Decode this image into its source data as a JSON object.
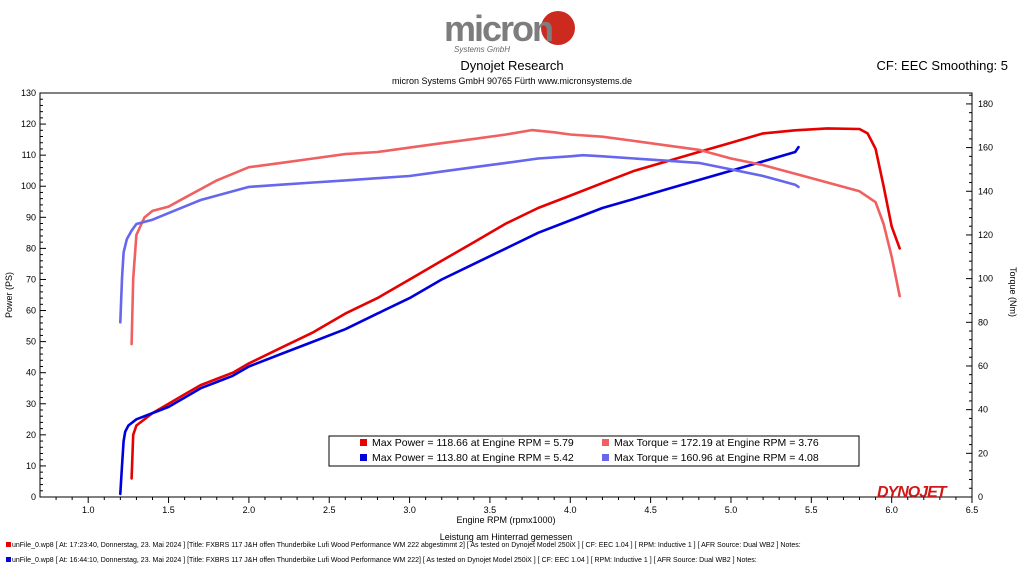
{
  "header": {
    "logo_text": "micron",
    "logo_subtext": "Systems GmbH",
    "title": "Dynojet Research",
    "subtitle": "micron Systems GmbH  90765 Fürth www.micronsystems.de",
    "cf_text": "CF: EEC Smoothing: 5"
  },
  "brand": {
    "dynojet_logo_text": "DYNOJET"
  },
  "colors": {
    "red": "#e60000",
    "blue": "#0000dd",
    "light_red": "#f06060",
    "light_blue": "#6666ee"
  },
  "chart_data": {
    "type": "line",
    "xlabel": "Engine RPM (rpmx1000)",
    "xlabel_sub": "Leistung am Hinterrad gemessen",
    "ylabel_left": "Power (PS)",
    "ylabel_right": "Torque (Nm)",
    "xlim": [
      0.7,
      6.5
    ],
    "ylim_left": [
      0,
      130
    ],
    "ylim_right": [
      0,
      185
    ],
    "x_ticks": [
      "1.0",
      "1.5",
      "2.0",
      "2.5",
      "3.0",
      "3.5",
      "4.0",
      "4.5",
      "5.0",
      "5.5",
      "6.0",
      "6.5"
    ],
    "y_ticks_left": [
      "0",
      "10",
      "20",
      "30",
      "40",
      "50",
      "60",
      "70",
      "80",
      "90",
      "100",
      "110",
      "120",
      "130"
    ],
    "y_ticks_right": [
      "0",
      "20",
      "40",
      "60",
      "80",
      "100",
      "120",
      "140",
      "160",
      "180"
    ],
    "grid": false,
    "series": [
      {
        "name": "Max Power",
        "axis": "left",
        "color": "#e60000",
        "x": [
          1.27,
          1.28,
          1.3,
          1.4,
          1.5,
          1.6,
          1.7,
          1.8,
          1.9,
          2.0,
          2.2,
          2.4,
          2.6,
          2.8,
          3.0,
          3.2,
          3.4,
          3.6,
          3.8,
          4.0,
          4.2,
          4.4,
          4.6,
          4.8,
          5.0,
          5.2,
          5.4,
          5.6,
          5.8,
          5.85,
          5.9,
          5.95,
          6.0,
          6.05
        ],
        "y": [
          6,
          20,
          23,
          27,
          30,
          33,
          36,
          38,
          40,
          43,
          48,
          53,
          59,
          64,
          70,
          76,
          82,
          88,
          93,
          97,
          101,
          105,
          108,
          111,
          114,
          117,
          118,
          118.6,
          118.4,
          117,
          112,
          100,
          87,
          80
        ]
      },
      {
        "name": "Max Power",
        "axis": "left",
        "color": "#0000dd",
        "x": [
          1.2,
          1.21,
          1.22,
          1.23,
          1.25,
          1.3,
          1.4,
          1.5,
          1.6,
          1.7,
          1.8,
          1.9,
          2.0,
          2.2,
          2.4,
          2.6,
          2.8,
          3.0,
          3.2,
          3.4,
          3.6,
          3.8,
          4.0,
          4.2,
          4.4,
          4.6,
          4.8,
          5.0,
          5.2,
          5.4,
          5.42
        ],
        "y": [
          1,
          10,
          18,
          21,
          23,
          25,
          27,
          29,
          32,
          35,
          37,
          39,
          42,
          46,
          50,
          54,
          59,
          64,
          70,
          75,
          80,
          85,
          89,
          93,
          96,
          99,
          102,
          105,
          108,
          111,
          112.6
        ]
      },
      {
        "name": "Max Torque",
        "axis": "right",
        "color": "#f06060",
        "x": [
          1.27,
          1.28,
          1.3,
          1.35,
          1.4,
          1.5,
          1.6,
          1.7,
          1.8,
          1.9,
          2.0,
          2.2,
          2.4,
          2.6,
          2.8,
          3.0,
          3.2,
          3.4,
          3.6,
          3.76,
          3.9,
          4.0,
          4.2,
          4.4,
          4.6,
          4.8,
          5.0,
          5.2,
          5.4,
          5.6,
          5.8,
          5.9,
          5.95,
          6.0,
          6.05
        ],
        "y": [
          70,
          100,
          120,
          128,
          131,
          133,
          137,
          141,
          145,
          148,
          151,
          153,
          155,
          157,
          158,
          160,
          162,
          164,
          166,
          168,
          167,
          166,
          165,
          163,
          161,
          159,
          155,
          152,
          148,
          144,
          140,
          135,
          125,
          110,
          92
        ]
      },
      {
        "name": "Max Torque",
        "axis": "right",
        "color": "#6666ee",
        "x": [
          1.2,
          1.21,
          1.22,
          1.24,
          1.27,
          1.3,
          1.4,
          1.5,
          1.6,
          1.7,
          1.8,
          1.9,
          2.0,
          2.2,
          2.4,
          2.6,
          2.8,
          3.0,
          3.2,
          3.4,
          3.6,
          3.8,
          4.0,
          4.08,
          4.2,
          4.4,
          4.6,
          4.8,
          5.0,
          5.2,
          5.4,
          5.42
        ],
        "y": [
          80,
          100,
          112,
          118,
          122,
          125,
          127,
          130,
          133,
          136,
          138,
          140,
          142,
          143,
          144,
          145,
          146,
          147,
          149,
          151,
          153,
          155,
          156,
          156.5,
          156,
          155,
          154,
          153,
          150,
          147,
          143,
          142
        ]
      }
    ],
    "legend": {
      "placement": "bottom-center",
      "entries": [
        {
          "text": "Max Power = 118.66 at Engine RPM = 5.79",
          "color": "#e60000"
        },
        {
          "text": "Max Torque = 172.19 at Engine RPM = 3.76",
          "color": "#f06060"
        },
        {
          "text": "Max Power = 113.80 at Engine RPM = 5.42",
          "color": "#0000dd"
        },
        {
          "text": "Max Torque = 160.96 at Engine RPM = 4.08",
          "color": "#6666ee"
        }
      ]
    }
  },
  "footer": {
    "line1": "unFile_0.wp8 [  At: 17:23:40, Donnerstag, 23. Mai 2024 ]  [Title: FXBRS 117 J&H offen Thunderbike Lufi Wood Performance WM 222 abgestimmt 2]  [ As tested on Dynojet Model 250iX ]  [ CF: EEC 1.04 ]  [ RPM: Inductive 1 ]  [ AFR Source: Dual WB2 ]  Notes:",
    "line2": "unFile_0.wp8 [  At: 16:44:10, Donnerstag, 23. Mai 2024 ]  [Title: FXBRS 117 J&H offen Thunderbike Lufi Wood Performance WM 222]  [ As tested on Dynojet Model 250iX ]  [ CF: EEC 1.04 ]  [ RPM: Inductive 1 ]  [ AFR Source: Dual WB2 ]  Notes:"
  }
}
